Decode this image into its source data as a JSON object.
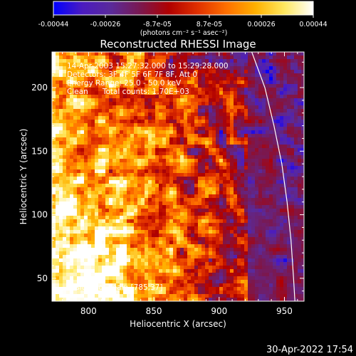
{
  "title": "Reconstructed RHESSI Image",
  "info_lines": [
    "14-Apr-2003 15:27:32.000 to 15:29:28.000",
    "Detectors: 3F 4F 5F 6F 7F 8F, Att 0",
    "Energy Range: 25.0 - 50.0 keV",
    "Clean      Total counts: 1.70E+03"
  ],
  "position_label": "Position of Peak: [785,37]",
  "timestamp": "30-Apr-2022 17:54",
  "colorbar": {
    "ticks": [
      "-0.00044",
      "-0.00026",
      "-8.7e-05",
      "8.7e-05",
      "0.00026",
      "0.00044"
    ],
    "units_text": "(photons cm⁻² s⁻¹ asec⁻²)",
    "range": [
      -0.00044,
      0.00044
    ],
    "colors": [
      "#0000ff",
      "#4b1bc0",
      "#5a2a9a",
      "#7a1850",
      "#b00000",
      "#e03000",
      "#ff7000",
      "#ffb000",
      "#ffe860",
      "#ffffff"
    ]
  },
  "chart_data": {
    "type": "heatmap",
    "title": "Reconstructed RHESSI Image",
    "xlabel": "Heliocentric X (arcsec)",
    "ylabel": "Heliocentric Y (arcsec)",
    "xlim": [
      772,
      965
    ],
    "ylim": [
      32,
      228
    ],
    "x_ticks": [
      800,
      850,
      900,
      950
    ],
    "y_ticks": [
      50,
      100,
      150,
      200
    ],
    "x_tick_labels": [
      "800",
      "850",
      "900",
      "950"
    ],
    "y_tick_labels": [
      "50",
      "100",
      "150",
      "200"
    ],
    "peak_position": [
      785,
      37
    ],
    "total_counts": "1.70E+03",
    "limb_curve": [
      [
        925,
        228
      ],
      [
        935,
        200
      ],
      [
        942,
        170
      ],
      [
        948,
        140
      ],
      [
        952,
        110
      ],
      [
        955,
        80
      ],
      [
        957,
        50
      ],
      [
        958,
        32
      ]
    ]
  }
}
